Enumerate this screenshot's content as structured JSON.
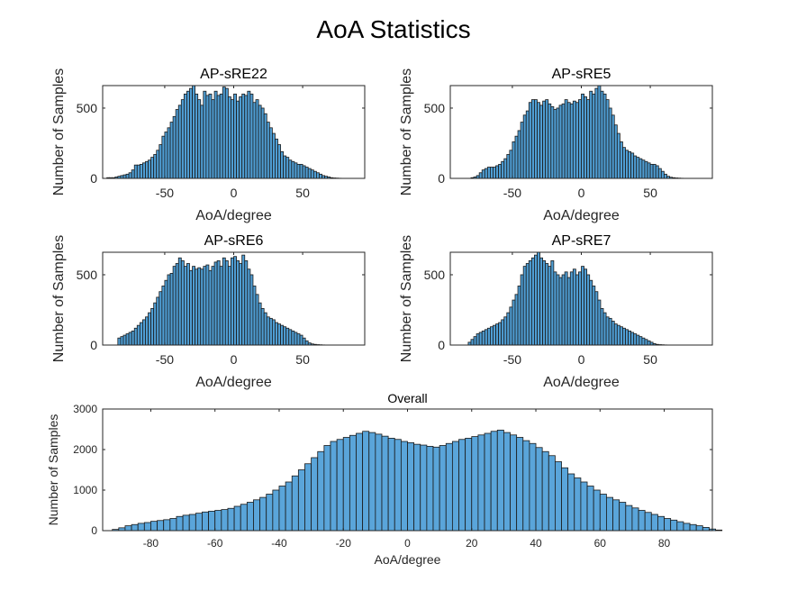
{
  "figure_title": "AoA Statistics",
  "chart_data": [
    {
      "type": "bar",
      "title": "AP-sRE22",
      "xlabel": "AoA/degree",
      "ylabel": "Number of Samples",
      "xlim": [
        -95,
        95
      ],
      "ylim": [
        0,
        660
      ],
      "xticks": [
        -50,
        0,
        50
      ],
      "yticks": [
        0,
        500
      ],
      "bin_width": 2,
      "bin_start": -92,
      "values": [
        5,
        5,
        5,
        10,
        15,
        20,
        25,
        30,
        40,
        60,
        95,
        95,
        100,
        110,
        120,
        130,
        150,
        170,
        200,
        240,
        300,
        330,
        360,
        400,
        440,
        490,
        520,
        560,
        600,
        620,
        640,
        660,
        600,
        560,
        520,
        620,
        590,
        600,
        560,
        620,
        590,
        600,
        650,
        640,
        580,
        560,
        600,
        550,
        580,
        600,
        590,
        620,
        600,
        540,
        560,
        520,
        500,
        460,
        400,
        360,
        320,
        280,
        240,
        190,
        160,
        150,
        130,
        120,
        110,
        100,
        100,
        90,
        80,
        70,
        60,
        50,
        40,
        30,
        20,
        15,
        10,
        5,
        3,
        2,
        1,
        0,
        0,
        0,
        0,
        0,
        0,
        0,
        0,
        0,
        0
      ]
    },
    {
      "type": "bar",
      "title": "AP-sRE5",
      "xlabel": "AoA/degree",
      "ylabel": "Number of Samples",
      "xlim": [
        -95,
        95
      ],
      "ylim": [
        0,
        660
      ],
      "xticks": [
        -50,
        0,
        50
      ],
      "yticks": [
        0,
        500
      ],
      "bin_width": 2,
      "bin_start": -92,
      "values": [
        0,
        0,
        0,
        0,
        0,
        0,
        5,
        10,
        20,
        40,
        60,
        70,
        80,
        80,
        80,
        90,
        100,
        120,
        140,
        170,
        200,
        260,
        300,
        340,
        400,
        450,
        480,
        540,
        560,
        560,
        540,
        520,
        550,
        560,
        530,
        510,
        490,
        500,
        520,
        530,
        560,
        540,
        530,
        550,
        540,
        560,
        600,
        580,
        560,
        620,
        600,
        640,
        660,
        620,
        600,
        560,
        500,
        450,
        380,
        320,
        260,
        220,
        200,
        190,
        180,
        160,
        150,
        140,
        130,
        120,
        110,
        100,
        100,
        90,
        70,
        50,
        30,
        15,
        8,
        5,
        3,
        2,
        1,
        0,
        0,
        0,
        0,
        0,
        0,
        0,
        0,
        0,
        0,
        0,
        0
      ]
    },
    {
      "type": "bar",
      "title": "AP-sRE6",
      "xlabel": "AoA/degree",
      "ylabel": "Number of Samples",
      "xlim": [
        -95,
        95
      ],
      "ylim": [
        0,
        660
      ],
      "xticks": [
        -50,
        0,
        50
      ],
      "yticks": [
        0,
        500
      ],
      "bin_width": 2,
      "bin_start": -92,
      "values": [
        0,
        0,
        0,
        0,
        50,
        60,
        70,
        80,
        90,
        100,
        120,
        140,
        160,
        180,
        200,
        230,
        260,
        300,
        340,
        380,
        420,
        460,
        500,
        510,
        560,
        580,
        620,
        600,
        560,
        580,
        530,
        560,
        540,
        550,
        540,
        560,
        570,
        530,
        560,
        590,
        600,
        560,
        620,
        600,
        560,
        620,
        630,
        600,
        580,
        640,
        600,
        540,
        500,
        420,
        360,
        300,
        260,
        230,
        200,
        190,
        180,
        160,
        150,
        140,
        130,
        120,
        110,
        100,
        90,
        80,
        70,
        50,
        30,
        15,
        8,
        5,
        3,
        2,
        1,
        0,
        0,
        0,
        0,
        0,
        0,
        0,
        0,
        0,
        0,
        0,
        0,
        0,
        0,
        0,
        0
      ]
    },
    {
      "type": "bar",
      "title": "AP-sRE7",
      "xlabel": "AoA/degree",
      "ylabel": "Number of Samples",
      "xlim": [
        -95,
        95
      ],
      "ylim": [
        0,
        660
      ],
      "xticks": [
        -50,
        0,
        50
      ],
      "yticks": [
        0,
        500
      ],
      "bin_width": 2,
      "bin_start": -92,
      "values": [
        0,
        0,
        0,
        0,
        0,
        20,
        40,
        60,
        80,
        90,
        100,
        110,
        120,
        130,
        140,
        150,
        160,
        180,
        200,
        230,
        270,
        320,
        360,
        420,
        500,
        560,
        580,
        600,
        620,
        640,
        680,
        620,
        600,
        580,
        560,
        600,
        520,
        500,
        480,
        500,
        520,
        480,
        520,
        540,
        500,
        520,
        560,
        540,
        500,
        460,
        420,
        380,
        320,
        260,
        230,
        200,
        190,
        170,
        150,
        140,
        130,
        120,
        110,
        100,
        90,
        80,
        70,
        60,
        50,
        40,
        30,
        20,
        10,
        5,
        3,
        2,
        1,
        0,
        0,
        0,
        0,
        0,
        0,
        0,
        0,
        0,
        0,
        0,
        0,
        0,
        0,
        0,
        0,
        0,
        0
      ]
    },
    {
      "type": "bar",
      "title": "Overall",
      "xlabel": "AoA/degree",
      "ylabel": "Number of Samples",
      "xlim": [
        -95,
        95
      ],
      "ylim": [
        0,
        3000
      ],
      "xticks": [
        -80,
        -60,
        -40,
        -20,
        0,
        20,
        40,
        60,
        80
      ],
      "yticks": [
        0,
        1000,
        2000,
        3000
      ],
      "bin_width": 2,
      "bin_start": -92,
      "values": [
        30,
        70,
        120,
        150,
        180,
        200,
        230,
        250,
        270,
        300,
        350,
        380,
        400,
        430,
        460,
        480,
        500,
        520,
        550,
        600,
        650,
        700,
        760,
        820,
        900,
        1000,
        1100,
        1200,
        1350,
        1500,
        1650,
        1800,
        1950,
        2100,
        2200,
        2250,
        2300,
        2350,
        2400,
        2450,
        2420,
        2380,
        2330,
        2280,
        2250,
        2200,
        2170,
        2130,
        2110,
        2080,
        2060,
        2100,
        2150,
        2200,
        2250,
        2280,
        2320,
        2360,
        2400,
        2450,
        2480,
        2420,
        2360,
        2300,
        2220,
        2150,
        2050,
        1950,
        1850,
        1700,
        1550,
        1400,
        1300,
        1200,
        1100,
        1000,
        900,
        820,
        760,
        700,
        620,
        560,
        500,
        450,
        400,
        350,
        300,
        260,
        220,
        180,
        150,
        120,
        80,
        40,
        15
      ]
    }
  ]
}
